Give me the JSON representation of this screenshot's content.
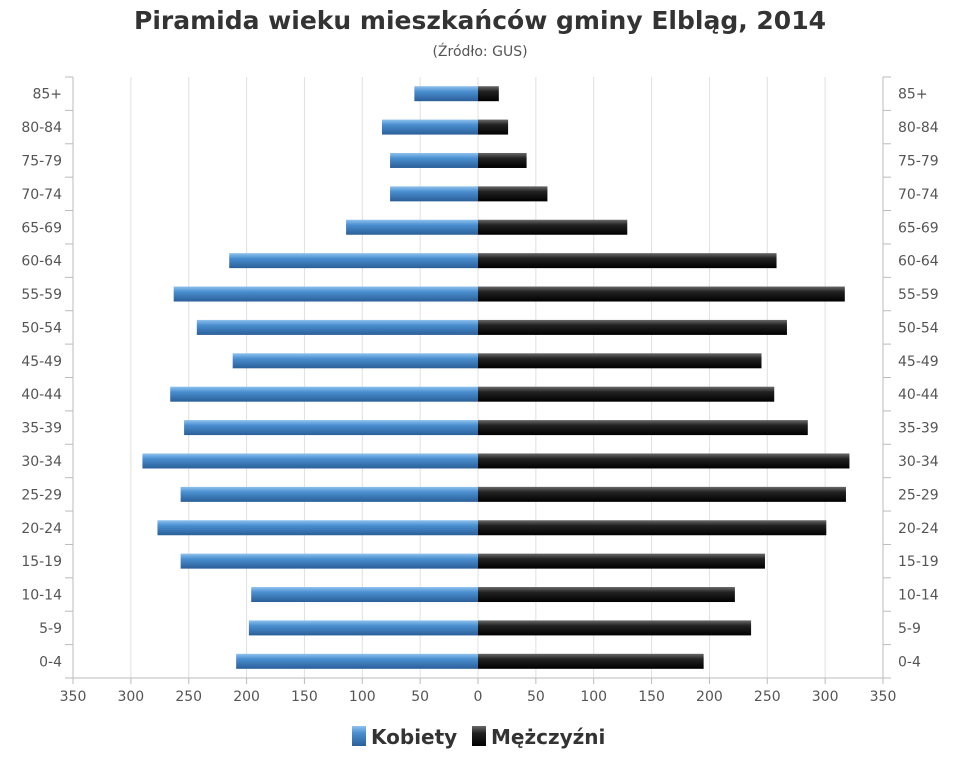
{
  "chart_data": {
    "type": "bar",
    "title": "Piramida wieku mieszkańców gminy Elbląg, 2014",
    "subtitle": "(Źródło: GUS)",
    "categories": [
      "85+",
      "80-84",
      "75-79",
      "70-74",
      "65-69",
      "60-64",
      "55-59",
      "50-54",
      "45-49",
      "40-44",
      "35-39",
      "30-34",
      "25-29",
      "20-24",
      "15-19",
      "10-14",
      "5-9",
      "0-4"
    ],
    "series": [
      {
        "name": "Kobiety",
        "side": "left",
        "color": "#3f7fc0",
        "values": [
          55,
          83,
          76,
          76,
          114,
          215,
          263,
          243,
          212,
          266,
          254,
          290,
          257,
          277,
          257,
          196,
          198,
          209
        ]
      },
      {
        "name": "Mężczyźni",
        "side": "right",
        "color": "#1a1a1a",
        "values": [
          18,
          26,
          42,
          60,
          129,
          258,
          317,
          267,
          245,
          256,
          285,
          321,
          318,
          301,
          248,
          222,
          236,
          195
        ]
      }
    ],
    "xlim": [
      -350,
      350
    ],
    "x_ticks": [
      350,
      300,
      250,
      200,
      150,
      100,
      50,
      0,
      50,
      100,
      150,
      200,
      250,
      300,
      350
    ],
    "grid": true,
    "legend_position": "bottom"
  }
}
